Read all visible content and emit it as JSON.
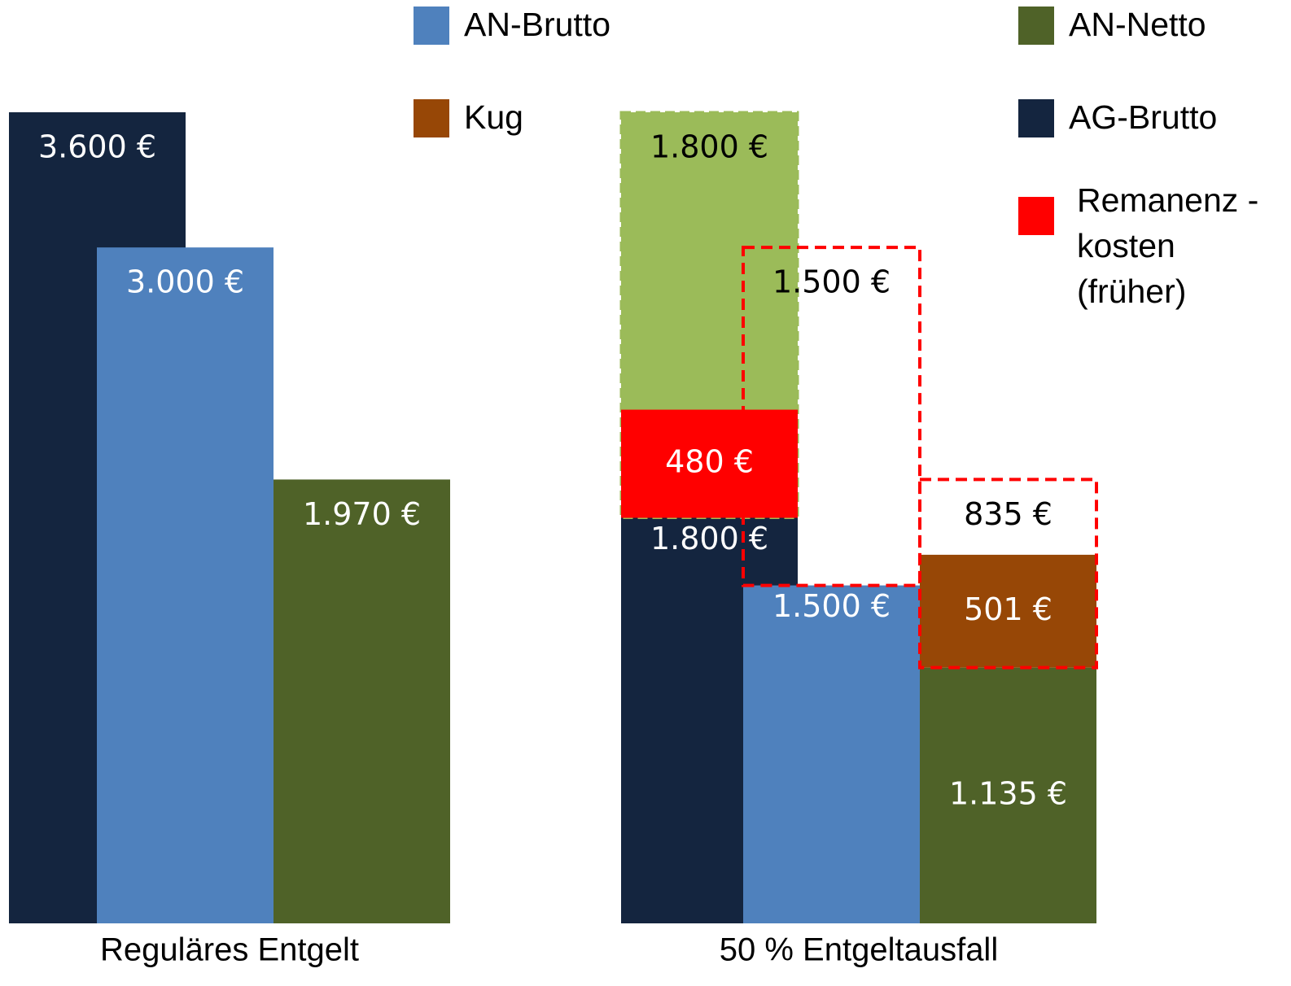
{
  "chart_data": {
    "type": "bar",
    "categories": [
      "Reguläres Entgelt",
      "50 % Entgeltausfall"
    ],
    "ylim": [
      0,
      3600
    ],
    "series": [
      {
        "name": "AG-Brutto",
        "color": "#14253f",
        "values": [
          3600,
          1800
        ],
        "value_labels": [
          "3.600 €",
          "1.800 €"
        ]
      },
      {
        "name": "AN-Brutto",
        "color": "#4f81bd",
        "values": [
          3000,
          1500
        ],
        "value_labels": [
          "3.000 €",
          "1.500 €"
        ]
      },
      {
        "name": "AN-Netto",
        "color": "#4f6228",
        "values": [
          1970,
          1135
        ],
        "value_labels": [
          "1.970 €",
          "1.135 €"
        ]
      },
      {
        "name": "Kug",
        "color": "#974706",
        "values": [
          null,
          501
        ],
        "value_labels": [
          null,
          "501 €"
        ]
      },
      {
        "name": "Remanenz -kosten (früher)",
        "color": "#ff0000",
        "values": [
          null,
          480
        ],
        "value_labels": [
          null,
          "480 €"
        ]
      }
    ],
    "former": [
      {
        "color": "#9bbb59",
        "fill": true,
        "values": [
          null,
          1800
        ],
        "value_labels": [
          null,
          "1.800 €"
        ]
      },
      {
        "color": "#ff0000",
        "fill": false,
        "values": [
          null,
          1500
        ],
        "value_labels": [
          null,
          "1.500 €"
        ]
      },
      {
        "color": "#ff0000",
        "fill": false,
        "values": [
          null,
          835
        ],
        "value_labels": [
          null,
          "835 €"
        ]
      }
    ]
  }
}
